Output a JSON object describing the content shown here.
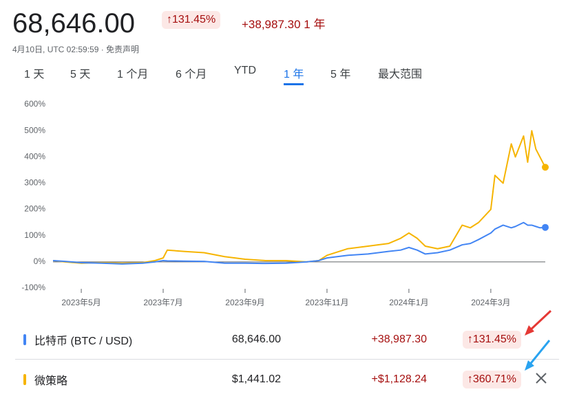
{
  "header": {
    "price": "68,646.00",
    "change_pct": "131.45%",
    "change": "+38,987.30",
    "period": "1 年",
    "timestamp": "4月10日, UTC 02:59:59 · 免责声明"
  },
  "tabs": [
    "1 天",
    "5 天",
    "1 个月",
    "6 个月",
    "YTD",
    "1 年",
    "5 年",
    "最大范围"
  ],
  "chart": {
    "type": "line",
    "x": [
      0.31,
      0.6,
      1,
      1.5,
      2,
      2.5,
      2.8,
      3,
      3.1,
      3.5,
      4,
      4.5,
      5,
      5.5,
      6,
      6.5,
      6.8,
      7,
      7.5,
      8,
      8.5,
      8.8,
      9,
      9.2,
      9.4,
      9.7,
      10,
      10.3,
      10.5,
      10.7,
      11,
      11.1,
      11.3,
      11.5,
      11.6,
      11.8,
      11.9,
      12,
      12.1,
      12.2,
      12.33
    ],
    "xlim": [
      0.31,
      12.33
    ],
    "xticks": [
      {
        "value": 1,
        "label": "2023年5月"
      },
      {
        "value": 3,
        "label": "2023年7月"
      },
      {
        "value": 5,
        "label": "2023年9月"
      },
      {
        "value": 7,
        "label": "2023年11月"
      },
      {
        "value": 9,
        "label": "2024年1月"
      },
      {
        "value": 11,
        "label": "2024年3月"
      }
    ],
    "ylim": [
      -100,
      600
    ],
    "yticks": [
      {
        "value": -100,
        "label": "-100%"
      },
      {
        "value": 0,
        "label": "0%"
      },
      {
        "value": 100,
        "label": "100%"
      },
      {
        "value": 200,
        "label": "200%"
      },
      {
        "value": 300,
        "label": "300%"
      },
      {
        "value": 400,
        "label": "400%"
      },
      {
        "value": 500,
        "label": "500%"
      },
      {
        "value": 600,
        "label": "600%"
      }
    ],
    "series": [
      {
        "color": "#4285f4",
        "values": [
          5,
          2,
          -3,
          -5,
          -8,
          -5,
          0,
          5,
          4,
          3,
          2,
          -5,
          -5,
          -6,
          -5,
          0,
          5,
          15,
          25,
          30,
          40,
          45,
          55,
          45,
          30,
          35,
          45,
          65,
          70,
          85,
          110,
          125,
          140,
          130,
          135,
          150,
          140,
          140,
          135,
          130,
          131.45
        ]
      },
      {
        "color": "#f6b400",
        "values": [
          5,
          0,
          -5,
          -3,
          -5,
          -3,
          5,
          15,
          45,
          40,
          35,
          20,
          10,
          5,
          5,
          0,
          5,
          25,
          50,
          60,
          70,
          90,
          110,
          90,
          60,
          50,
          60,
          140,
          130,
          150,
          200,
          330,
          300,
          450,
          400,
          480,
          380,
          500,
          430,
          400,
          360.71
        ]
      }
    ]
  },
  "rows": [
    {
      "name": "比特币 (BTC / USD)",
      "price": "68,646.00",
      "change": "+38,987.30",
      "change_pct": "131.45%"
    },
    {
      "name": "微策略",
      "price": "$1,441.02",
      "change": "+$1,128.24",
      "change_pct": "360.71%"
    }
  ]
}
